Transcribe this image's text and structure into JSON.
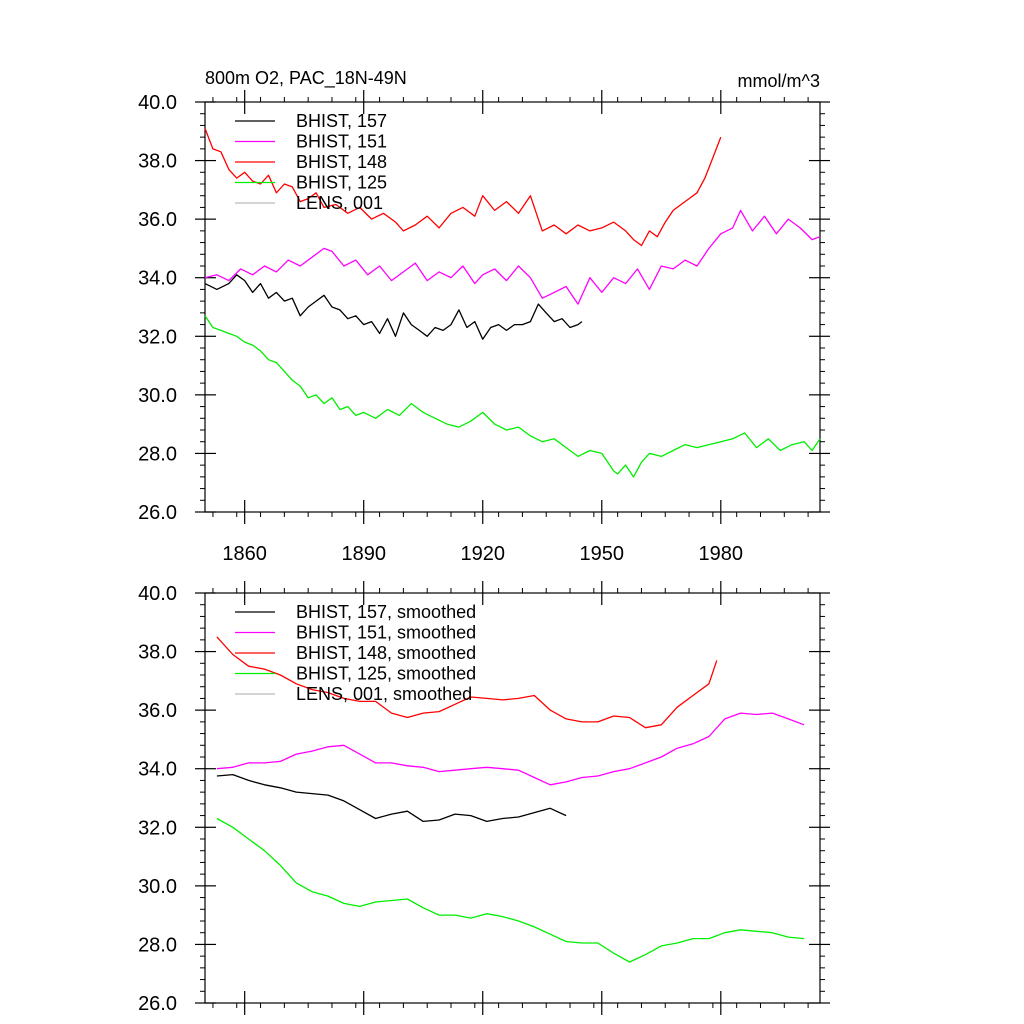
{
  "chart_data": [
    {
      "type": "line",
      "title": "800m O2, PAC_18N-49N",
      "units": "mmol/m^3",
      "xlim": [
        1850,
        2005
      ],
      "ylim": [
        26.0,
        40.0
      ],
      "x_ticks": [
        1860,
        1890,
        1920,
        1950,
        1980
      ],
      "x_tick_labels": [
        "1860",
        "1890",
        "1920",
        "1950",
        "1980"
      ],
      "y_ticks": [
        26.0,
        28.0,
        30.0,
        32.0,
        34.0,
        36.0,
        38.0,
        40.0
      ],
      "y_tick_labels": [
        "26.0",
        "28.0",
        "30.0",
        "32.0",
        "34.0",
        "36.0",
        "38.0",
        "40.0"
      ],
      "grid": false,
      "legend_position": "top-left",
      "series": [
        {
          "name": "BHIST, 157",
          "color": "#000000",
          "x": [
            1850,
            1853,
            1856,
            1858,
            1860,
            1862,
            1864,
            1866,
            1868,
            1870,
            1872,
            1874,
            1876,
            1878,
            1880,
            1882,
            1884,
            1886,
            1888,
            1890,
            1892,
            1894,
            1896,
            1898,
            1900,
            1902,
            1904,
            1906,
            1908,
            1910,
            1912,
            1914,
            1916,
            1918,
            1920,
            1922,
            1924,
            1926,
            1928,
            1930,
            1932,
            1934,
            1936,
            1938,
            1940,
            1942,
            1944,
            1945
          ],
          "y": [
            33.8,
            33.6,
            33.8,
            34.1,
            33.9,
            33.5,
            33.8,
            33.3,
            33.5,
            33.2,
            33.3,
            32.7,
            33.0,
            33.2,
            33.4,
            33.0,
            32.9,
            32.6,
            32.7,
            32.4,
            32.5,
            32.1,
            32.6,
            32.0,
            32.8,
            32.4,
            32.2,
            32.0,
            32.3,
            32.2,
            32.4,
            32.9,
            32.3,
            32.5,
            31.9,
            32.3,
            32.4,
            32.2,
            32.4,
            32.4,
            32.5,
            33.1,
            32.8,
            32.5,
            32.6,
            32.3,
            32.4,
            32.5
          ]
        },
        {
          "name": "BHIST, 151",
          "color": "#ff00ff",
          "x": [
            1850,
            1853,
            1856,
            1859,
            1862,
            1865,
            1868,
            1871,
            1874,
            1877,
            1880,
            1882,
            1885,
            1888,
            1891,
            1894,
            1897,
            1900,
            1903,
            1906,
            1909,
            1912,
            1915,
            1918,
            1920,
            1923,
            1926,
            1929,
            1932,
            1935,
            1938,
            1941,
            1944,
            1947,
            1950,
            1953,
            1956,
            1959,
            1962,
            1965,
            1968,
            1971,
            1974,
            1977,
            1980,
            1983,
            1985,
            1988,
            1991,
            1994,
            1997,
            2000,
            2003,
            2005
          ],
          "y": [
            34.0,
            34.1,
            33.9,
            34.3,
            34.1,
            34.4,
            34.2,
            34.6,
            34.4,
            34.7,
            35.0,
            34.9,
            34.4,
            34.6,
            34.1,
            34.4,
            33.9,
            34.2,
            34.5,
            33.9,
            34.2,
            34.0,
            34.4,
            33.8,
            34.1,
            34.3,
            33.9,
            34.4,
            34.0,
            33.3,
            33.5,
            33.7,
            33.1,
            34.0,
            33.5,
            34.0,
            33.8,
            34.3,
            33.6,
            34.4,
            34.3,
            34.6,
            34.4,
            35.0,
            35.5,
            35.7,
            36.3,
            35.6,
            36.1,
            35.5,
            36.0,
            35.7,
            35.3,
            35.4
          ]
        },
        {
          "name": "BHIST, 148",
          "color": "#ff0000",
          "x": [
            1850,
            1852,
            1854,
            1856,
            1858,
            1860,
            1862,
            1864,
            1866,
            1868,
            1870,
            1872,
            1874,
            1876,
            1878,
            1880,
            1883,
            1886,
            1889,
            1892,
            1895,
            1898,
            1900,
            1903,
            1906,
            1909,
            1912,
            1915,
            1918,
            1920,
            1923,
            1926,
            1929,
            1932,
            1935,
            1938,
            1941,
            1944,
            1947,
            1950,
            1953,
            1956,
            1958,
            1960,
            1962,
            1964,
            1966,
            1968,
            1970,
            1972,
            1974,
            1976,
            1978,
            1980
          ],
          "y": [
            39.1,
            38.4,
            38.3,
            37.7,
            37.4,
            37.6,
            37.3,
            37.2,
            37.5,
            36.9,
            37.2,
            37.1,
            36.6,
            36.7,
            36.9,
            36.4,
            36.5,
            36.2,
            36.4,
            36.0,
            36.2,
            35.9,
            35.6,
            35.8,
            36.1,
            35.7,
            36.2,
            36.4,
            36.1,
            36.8,
            36.3,
            36.6,
            36.2,
            36.8,
            35.6,
            35.8,
            35.5,
            35.8,
            35.6,
            35.7,
            35.9,
            35.6,
            35.3,
            35.1,
            35.6,
            35.4,
            35.9,
            36.3,
            36.5,
            36.7,
            36.9,
            37.4,
            38.1,
            38.8
          ]
        },
        {
          "name": "BHIST, 125",
          "color": "#00ee00",
          "x": [
            1850,
            1852,
            1854,
            1856,
            1858,
            1860,
            1862,
            1864,
            1866,
            1868,
            1870,
            1872,
            1874,
            1876,
            1878,
            1880,
            1882,
            1884,
            1886,
            1888,
            1890,
            1893,
            1896,
            1899,
            1902,
            1905,
            1908,
            1911,
            1914,
            1917,
            1920,
            1923,
            1926,
            1929,
            1932,
            1935,
            1938,
            1941,
            1944,
            1947,
            1950,
            1953,
            1954,
            1956,
            1958,
            1960,
            1962,
            1965,
            1968,
            1971,
            1974,
            1977,
            1980,
            1983,
            1986,
            1989,
            1992,
            1995,
            1998,
            2001,
            2003,
            2005
          ],
          "y": [
            32.7,
            32.3,
            32.2,
            32.1,
            32.0,
            31.8,
            31.7,
            31.5,
            31.2,
            31.1,
            30.8,
            30.5,
            30.3,
            29.9,
            30.0,
            29.7,
            29.9,
            29.5,
            29.6,
            29.3,
            29.4,
            29.2,
            29.5,
            29.3,
            29.7,
            29.4,
            29.2,
            29.0,
            28.9,
            29.1,
            29.4,
            29.0,
            28.8,
            28.9,
            28.6,
            28.4,
            28.5,
            28.2,
            27.9,
            28.1,
            28.0,
            27.4,
            27.3,
            27.6,
            27.2,
            27.7,
            28.0,
            27.9,
            28.1,
            28.3,
            28.2,
            28.3,
            28.4,
            28.5,
            28.7,
            28.2,
            28.5,
            28.1,
            28.3,
            28.4,
            28.1,
            28.5
          ]
        },
        {
          "name": "LENS, 001",
          "color": "#bbbbbb",
          "x": [],
          "y": []
        }
      ]
    },
    {
      "type": "line",
      "title": "",
      "units": "",
      "xlim": [
        1850,
        2005
      ],
      "ylim": [
        26.0,
        40.0
      ],
      "x_ticks": [
        1860,
        1890,
        1920,
        1950,
        1980
      ],
      "x_tick_labels": [],
      "y_ticks": [
        26.0,
        28.0,
        30.0,
        32.0,
        34.0,
        36.0,
        38.0,
        40.0
      ],
      "y_tick_labels": [
        "26.0",
        "28.0",
        "30.0",
        "32.0",
        "34.0",
        "36.0",
        "38.0",
        "40.0"
      ],
      "grid": false,
      "legend_position": "top-left",
      "series": [
        {
          "name": "BHIST, 157, smoothed",
          "color": "#000000",
          "x": [
            1853,
            1857,
            1861,
            1865,
            1869,
            1873,
            1877,
            1881,
            1885,
            1889,
            1893,
            1897,
            1901,
            1905,
            1909,
            1913,
            1917,
            1921,
            1925,
            1929,
            1933,
            1937,
            1941
          ],
          "y": [
            33.75,
            33.8,
            33.6,
            33.45,
            33.35,
            33.2,
            33.15,
            33.1,
            32.9,
            32.6,
            32.3,
            32.45,
            32.55,
            32.2,
            32.25,
            32.45,
            32.4,
            32.2,
            32.3,
            32.35,
            32.5,
            32.65,
            32.4
          ]
        },
        {
          "name": "BHIST, 151, smoothed",
          "color": "#ff00ff",
          "x": [
            1853,
            1857,
            1861,
            1865,
            1869,
            1873,
            1877,
            1881,
            1885,
            1889,
            1893,
            1897,
            1901,
            1905,
            1909,
            1913,
            1917,
            1921,
            1925,
            1929,
            1933,
            1937,
            1941,
            1945,
            1949,
            1953,
            1957,
            1961,
            1965,
            1969,
            1973,
            1977,
            1981,
            1985,
            1989,
            1993,
            1997,
            2001
          ],
          "y": [
            34.0,
            34.05,
            34.2,
            34.2,
            34.25,
            34.5,
            34.6,
            34.75,
            34.8,
            34.5,
            34.2,
            34.2,
            34.1,
            34.05,
            33.9,
            33.95,
            34.0,
            34.05,
            34.0,
            33.95,
            33.7,
            33.45,
            33.55,
            33.7,
            33.75,
            33.9,
            34.0,
            34.2,
            34.4,
            34.7,
            34.85,
            35.1,
            35.7,
            35.9,
            35.85,
            35.9,
            35.7,
            35.5
          ]
        },
        {
          "name": "BHIST, 148, smoothed",
          "color": "#ff0000",
          "x": [
            1853,
            1857,
            1861,
            1865,
            1869,
            1873,
            1877,
            1881,
            1885,
            1889,
            1893,
            1897,
            1901,
            1905,
            1909,
            1913,
            1917,
            1921,
            1925,
            1929,
            1933,
            1937,
            1941,
            1945,
            1949,
            1953,
            1957,
            1961,
            1965,
            1969,
            1973,
            1977,
            1979
          ],
          "y": [
            38.5,
            37.9,
            37.5,
            37.4,
            37.2,
            36.9,
            36.7,
            36.6,
            36.4,
            36.3,
            36.3,
            35.9,
            35.75,
            35.9,
            35.95,
            36.2,
            36.45,
            36.4,
            36.35,
            36.4,
            36.5,
            36.0,
            35.7,
            35.6,
            35.6,
            35.8,
            35.75,
            35.4,
            35.5,
            36.1,
            36.5,
            36.9,
            37.7
          ]
        },
        {
          "name": "BHIST, 125, smoothed",
          "color": "#00ee00",
          "x": [
            1853,
            1857,
            1861,
            1865,
            1869,
            1873,
            1877,
            1881,
            1885,
            1889,
            1893,
            1897,
            1901,
            1905,
            1909,
            1913,
            1917,
            1921,
            1925,
            1929,
            1933,
            1937,
            1941,
            1945,
            1949,
            1953,
            1957,
            1961,
            1965,
            1969,
            1973,
            1977,
            1981,
            1985,
            1989,
            1993,
            1997,
            2001
          ],
          "y": [
            32.3,
            32.0,
            31.6,
            31.2,
            30.7,
            30.1,
            29.8,
            29.65,
            29.4,
            29.3,
            29.45,
            29.5,
            29.55,
            29.25,
            29.0,
            29.0,
            28.9,
            29.05,
            28.95,
            28.8,
            28.6,
            28.35,
            28.1,
            28.05,
            28.05,
            27.7,
            27.4,
            27.65,
            27.95,
            28.05,
            28.2,
            28.2,
            28.4,
            28.5,
            28.45,
            28.4,
            28.25,
            28.2
          ]
        },
        {
          "name": "LENS, 001, smoothed",
          "color": "#bbbbbb",
          "x": [],
          "y": []
        }
      ]
    }
  ]
}
